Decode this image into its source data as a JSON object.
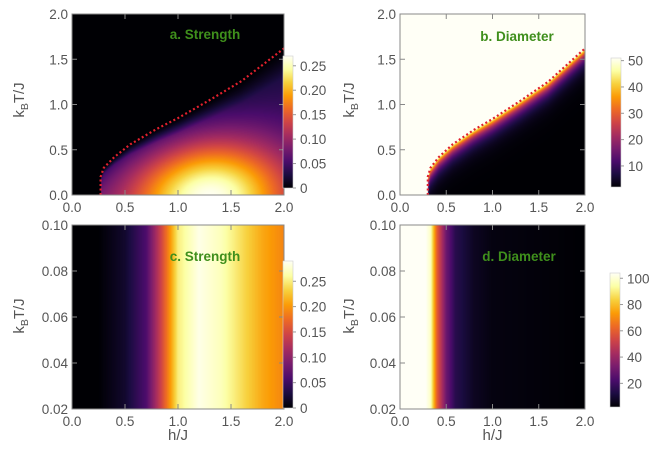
{
  "colors": {
    "title": "#3f8f1c",
    "boundary": "#e0202e",
    "axis": "#888888",
    "text": "#555555",
    "colormap": [
      "#000004",
      "#1b0c41",
      "#4a0c6b",
      "#781c6d",
      "#a52c60",
      "#cf4446",
      "#ed6925",
      "#fb9b06",
      "#f7d13d",
      "#fcffa4",
      "#fffff6"
    ]
  },
  "chart_data": [
    {
      "id": "a",
      "type": "heatmap",
      "title": "a. Strength",
      "xlabel": "",
      "ylabel": {
        "base": "k",
        "sub": "B",
        "rest": "T/J"
      },
      "xlim": [
        0.0,
        2.0
      ],
      "ylim": [
        0.0,
        2.0
      ],
      "xticks": [
        "0.0",
        "0.5",
        "1.0",
        "1.5",
        "2.0"
      ],
      "xtick_values": [
        0.0,
        0.5,
        1.0,
        1.5,
        2.0
      ],
      "yticks": [
        "0.0",
        "0.5",
        "1.0",
        "1.5",
        "2.0"
      ],
      "ytick_values": [
        0.0,
        0.5,
        1.0,
        1.5,
        2.0
      ],
      "boundary": {
        "style": "dotted",
        "points": [
          [
            0.27,
            0.0
          ],
          [
            0.27,
            0.2
          ],
          [
            0.3,
            0.3
          ],
          [
            0.4,
            0.42
          ],
          [
            0.55,
            0.56
          ],
          [
            0.8,
            0.73
          ],
          [
            1.0,
            0.85
          ],
          [
            1.3,
            1.05
          ],
          [
            1.6,
            1.26
          ],
          [
            2.0,
            1.62
          ]
        ]
      },
      "colorbar": {
        "min": 0,
        "max": 0.27,
        "ticks": [
          "0",
          "0.05",
          "0.10",
          "0.15",
          "0.20",
          "0.25"
        ],
        "tick_values": [
          0,
          0.05,
          0.1,
          0.15,
          0.2,
          0.25
        ]
      },
      "peak": {
        "x": 1.3,
        "y": 0.05,
        "value": 0.27
      }
    },
    {
      "id": "b",
      "type": "heatmap",
      "title": "b. Diameter",
      "xlabel": "",
      "ylabel": {
        "base": "k",
        "sub": "B",
        "rest": "T/J"
      },
      "xlim": [
        0.0,
        2.0
      ],
      "ylim": [
        0.0,
        2.0
      ],
      "xticks": [
        "0.0",
        "0.5",
        "1.0",
        "1.5",
        "2.0"
      ],
      "xtick_values": [
        0.0,
        0.5,
        1.0,
        1.5,
        2.0
      ],
      "yticks": [
        "0.0",
        "0.5",
        "1.0",
        "1.5",
        "2.0"
      ],
      "ytick_values": [
        0.0,
        0.5,
        1.0,
        1.5,
        2.0
      ],
      "boundary": {
        "style": "dotted",
        "points": [
          [
            0.3,
            0.0
          ],
          [
            0.3,
            0.2
          ],
          [
            0.33,
            0.3
          ],
          [
            0.42,
            0.42
          ],
          [
            0.57,
            0.56
          ],
          [
            0.8,
            0.72
          ],
          [
            1.0,
            0.84
          ],
          [
            1.3,
            1.04
          ],
          [
            1.6,
            1.25
          ],
          [
            2.0,
            1.62
          ]
        ]
      },
      "colorbar": {
        "min": 2,
        "max": 51,
        "ticks": [
          "10",
          "20",
          "30",
          "40",
          "50"
        ],
        "tick_values": [
          10,
          20,
          30,
          40,
          50
        ]
      }
    },
    {
      "id": "c",
      "type": "heatmap",
      "title": "c. Strength",
      "xlabel": "h/J",
      "ylabel": {
        "base": "k",
        "sub": "B",
        "rest": "T/J"
      },
      "xlim": [
        0.0,
        2.0
      ],
      "ylim": [
        0.02,
        0.1
      ],
      "xticks": [
        "0.0",
        "0.5",
        "1.0",
        "1.5",
        "2.0"
      ],
      "xtick_values": [
        0.0,
        0.5,
        1.0,
        1.5,
        2.0
      ],
      "yticks": [
        "0.02",
        "0.04",
        "0.06",
        "0.08",
        "0.10"
      ],
      "ytick_values": [
        0.02,
        0.04,
        0.06,
        0.08,
        0.1
      ],
      "colorbar": {
        "min": 0,
        "max": 0.29,
        "ticks": [
          "0",
          "0.05",
          "0.10",
          "0.15",
          "0.20",
          "0.25"
        ],
        "tick_values": [
          0,
          0.05,
          0.1,
          0.15,
          0.2,
          0.25
        ]
      },
      "profile": {
        "x": [
          0.0,
          0.25,
          0.5,
          0.7,
          0.85,
          1.0,
          1.2,
          1.4,
          1.6,
          1.8,
          2.0
        ],
        "values": [
          0.0,
          0.0,
          0.02,
          0.06,
          0.15,
          0.25,
          0.285,
          0.27,
          0.24,
          0.21,
          0.19
        ]
      }
    },
    {
      "id": "d",
      "type": "heatmap",
      "title": "d. Diameter",
      "xlabel": "h/J",
      "ylabel": {
        "base": "k",
        "sub": "B",
        "rest": "T/J"
      },
      "xlim": [
        0.0,
        2.0
      ],
      "ylim": [
        0.02,
        0.1
      ],
      "xticks": [
        "0.0",
        "0.5",
        "1.0",
        "1.5",
        "2.0"
      ],
      "xtick_values": [
        0.0,
        0.5,
        1.0,
        1.5,
        2.0
      ],
      "yticks": [
        "0.02",
        "0.04",
        "0.06",
        "0.08",
        "0.10"
      ],
      "ytick_values": [
        0.02,
        0.04,
        0.06,
        0.08,
        0.1
      ],
      "colorbar": {
        "min": 2,
        "max": 104,
        "ticks": [
          "20",
          "40",
          "60",
          "80",
          "100"
        ],
        "tick_values": [
          20,
          40,
          60,
          80,
          100
        ]
      },
      "profile": {
        "x": [
          0.0,
          0.27,
          0.28,
          0.33,
          0.4,
          0.5,
          0.6,
          0.8,
          1.0,
          1.5,
          2.0
        ],
        "values": [
          104,
          104,
          104,
          98,
          60,
          30,
          15,
          7,
          4,
          3,
          2
        ]
      }
    }
  ]
}
